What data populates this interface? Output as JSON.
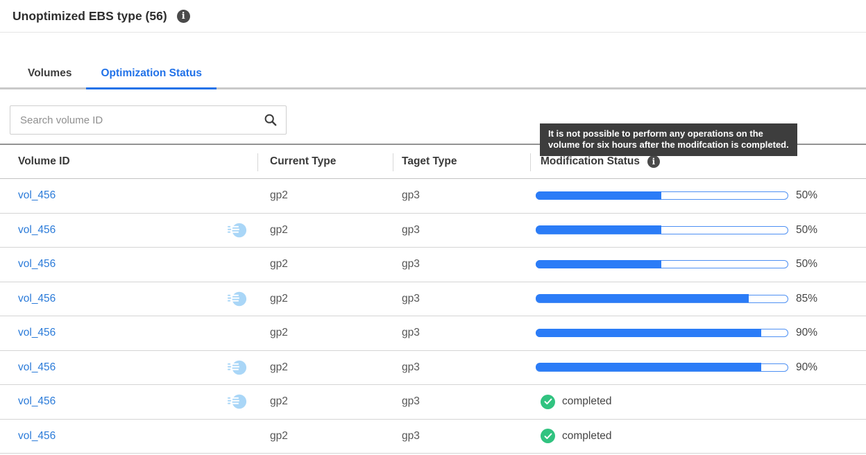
{
  "header": {
    "title": "Unoptimized EBS type (56)",
    "info_icon": "i"
  },
  "tabs": {
    "items": [
      {
        "label": "Volumes",
        "active": false
      },
      {
        "label": "Optimization Status",
        "active": true
      }
    ]
  },
  "search": {
    "placeholder": "Search volume ID",
    "icon": "search-icon"
  },
  "tooltip": {
    "lines": [
      "It is not possible to perform any operations on the",
      "volume for six hours after the modifcation is completed."
    ]
  },
  "table": {
    "columns": {
      "volume_id": "Volume ID",
      "current_type": "Current Type",
      "target_type": "Taget Type",
      "modification_status": "Modification Status"
    },
    "rows": [
      {
        "volume_id": "vol_456",
        "fast_restore": false,
        "current_type": "gp2",
        "target_type": "gp3",
        "status": "progress",
        "percent": 50,
        "percent_label": "50%"
      },
      {
        "volume_id": "vol_456",
        "fast_restore": true,
        "current_type": "gp2",
        "target_type": "gp3",
        "status": "progress",
        "percent": 50,
        "percent_label": "50%"
      },
      {
        "volume_id": "vol_456",
        "fast_restore": false,
        "current_type": "gp2",
        "target_type": "gp3",
        "status": "progress",
        "percent": 50,
        "percent_label": "50%"
      },
      {
        "volume_id": "vol_456",
        "fast_restore": true,
        "current_type": "gp2",
        "target_type": "gp3",
        "status": "progress",
        "percent": 85,
        "percent_label": "85%"
      },
      {
        "volume_id": "vol_456",
        "fast_restore": false,
        "current_type": "gp2",
        "target_type": "gp3",
        "status": "progress",
        "percent": 90,
        "percent_label": "90%"
      },
      {
        "volume_id": "vol_456",
        "fast_restore": true,
        "current_type": "gp2",
        "target_type": "gp3",
        "status": "progress",
        "percent": 90,
        "percent_label": "90%"
      },
      {
        "volume_id": "vol_456",
        "fast_restore": true,
        "current_type": "gp2",
        "target_type": "gp3",
        "status": "completed",
        "status_label": "completed"
      },
      {
        "volume_id": "vol_456",
        "fast_restore": false,
        "current_type": "gp2",
        "target_type": "gp3",
        "status": "completed",
        "status_label": "completed"
      }
    ]
  },
  "colors": {
    "accent_blue": "#2272e8",
    "link_blue": "#2b7bd9",
    "progress_blue": "#2b7cf7",
    "progress_border_blue": "#4e90f3",
    "success_green": "#31c380",
    "fast_icon_blue": "#a9d6f7",
    "tooltip_bg": "#3d3d3d",
    "info_icon_bg": "#4a4a4a"
  }
}
